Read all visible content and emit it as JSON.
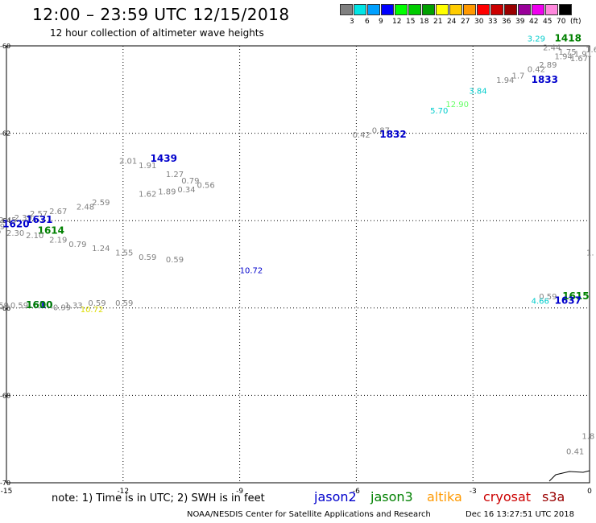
{
  "header": {
    "title": "12:00 – 23:59 UTC 12/15/2018",
    "subtitle": "12 hour collection of altimeter wave heights"
  },
  "legend": {
    "colors": [
      "#808080",
      "#00e5e5",
      "#00a0ff",
      "#0000ff",
      "#00ff00",
      "#00cc00",
      "#00a000",
      "#ffff00",
      "#ffcc00",
      "#ff9900",
      "#ff0000",
      "#cc0000",
      "#990000",
      "#990099",
      "#ee00ee",
      "#ff88dd",
      "#000000"
    ],
    "labels": [
      "3",
      "6",
      "9",
      "12",
      "15",
      "18",
      "21",
      "24",
      "27",
      "30",
      "33",
      "36",
      "39",
      "42",
      "45",
      "70",
      "(ft)"
    ]
  },
  "map": {
    "lon_ticks": [
      "-15",
      "-12",
      "-9",
      "-6",
      "-3",
      "0"
    ],
    "lat_ticks": [
      "-60",
      "-62",
      "-64",
      "-66",
      "-68",
      "-70"
    ],
    "observations": [
      {
        "t": "3.29",
        "c": "#00cccc",
        "lon": -1.6,
        "lat": -59.9
      },
      {
        "t": "1418",
        "c": "#008000",
        "lon": -0.9,
        "lat": -59.9,
        "b": true
      },
      {
        "t": "2.44",
        "c": "#808080",
        "lon": -1.2,
        "lat": -60.1
      },
      {
        "t": "1.75",
        "c": "#808080",
        "lon": -0.8,
        "lat": -60.2
      },
      {
        "t": "1.91",
        "c": "#808080",
        "lon": -0.4,
        "lat": -60.25
      },
      {
        "t": "1.6",
        "c": "#808080",
        "lon": -0.1,
        "lat": -60.15
      },
      {
        "t": "1.94",
        "c": "#808080",
        "lon": -0.9,
        "lat": -60.3
      },
      {
        "t": "1.67",
        "c": "#808080",
        "lon": -0.5,
        "lat": -60.35
      },
      {
        "t": "2.89",
        "c": "#808080",
        "lon": -1.3,
        "lat": -60.5
      },
      {
        "t": "0.42",
        "c": "#808080",
        "lon": -1.6,
        "lat": -60.6
      },
      {
        "t": "1.7",
        "c": "#808080",
        "lon": -2.0,
        "lat": -60.75
      },
      {
        "t": "1.94",
        "c": "#808080",
        "lon": -2.4,
        "lat": -60.85
      },
      {
        "t": "1833",
        "c": "#0000cc",
        "lon": -1.5,
        "lat": -60.85,
        "b": true
      },
      {
        "t": "3.84",
        "c": "#00cccc",
        "lon": -3.1,
        "lat": -61.1
      },
      {
        "t": "12.90",
        "c": "#66ff66",
        "lon": -3.7,
        "lat": -61.4
      },
      {
        "t": "5.70",
        "c": "#00cccc",
        "lon": -4.1,
        "lat": -61.55
      },
      {
        "t": "0.87",
        "c": "#808080",
        "lon": -5.6,
        "lat": -62.0
      },
      {
        "t": "0.42",
        "c": "#808080",
        "lon": -6.1,
        "lat": -62.1
      },
      {
        "t": "1832",
        "c": "#0000cc",
        "lon": -5.4,
        "lat": -62.1,
        "b": true
      },
      {
        "t": "2.01",
        "c": "#808080",
        "lon": -12.1,
        "lat": -62.7
      },
      {
        "t": "1439",
        "c": "#0000cc",
        "lon": -11.3,
        "lat": -62.65,
        "b": true
      },
      {
        "t": "1.91",
        "c": "#808080",
        "lon": -11.6,
        "lat": -62.8
      },
      {
        "t": "1.27",
        "c": "#808080",
        "lon": -10.9,
        "lat": -63.0
      },
      {
        "t": "0.79",
        "c": "#808080",
        "lon": -10.5,
        "lat": -63.15
      },
      {
        "t": "0.56",
        "c": "#808080",
        "lon": -10.1,
        "lat": -63.25
      },
      {
        "t": "0.34",
        "c": "#808080",
        "lon": -10.6,
        "lat": -63.35
      },
      {
        "t": "1.89",
        "c": "#808080",
        "lon": -11.1,
        "lat": -63.4
      },
      {
        "t": "1.62",
        "c": "#808080",
        "lon": -11.6,
        "lat": -63.45
      },
      {
        "t": "2.59",
        "c": "#808080",
        "lon": -12.8,
        "lat": -63.65
      },
      {
        "t": "2.48",
        "c": "#808080",
        "lon": -13.2,
        "lat": -63.75
      },
      {
        "t": "2.67",
        "c": "#808080",
        "lon": -13.9,
        "lat": -63.85
      },
      {
        "t": "2.57",
        "c": "#808080",
        "lon": -14.4,
        "lat": -63.9
      },
      {
        "t": "2.39",
        "c": "#808080",
        "lon": -14.8,
        "lat": -64.0
      },
      {
        "t": "2.45",
        "c": "#808080",
        "lon": -15.2,
        "lat": -64.05
      },
      {
        "t": "1631",
        "c": "#0000cc",
        "lon": -14.5,
        "lat": -64.05,
        "b": true
      },
      {
        "t": "2.95",
        "c": "#00cccc",
        "lon": -15.8,
        "lat": -64.15
      },
      {
        "t": "2.19",
        "c": "#808080",
        "lon": -15.5,
        "lat": -64.2
      },
      {
        "t": "1620",
        "c": "#0000cc",
        "lon": -15.1,
        "lat": -64.15,
        "b": true
      },
      {
        "t": "2.26",
        "c": "#808080",
        "lon": -15.6,
        "lat": -64.3
      },
      {
        "t": "1614",
        "c": "#008000",
        "lon": -14.2,
        "lat": -64.3,
        "b": true
      },
      {
        "t": "2.30",
        "c": "#808080",
        "lon": -15.0,
        "lat": -64.35
      },
      {
        "t": "2.10",
        "c": "#808080",
        "lon": -14.5,
        "lat": -64.4
      },
      {
        "t": "2.19",
        "c": "#808080",
        "lon": -13.9,
        "lat": -64.5
      },
      {
        "t": "0.79",
        "c": "#808080",
        "lon": -13.4,
        "lat": -64.6
      },
      {
        "t": "1.24",
        "c": "#808080",
        "lon": -12.8,
        "lat": -64.7
      },
      {
        "t": "1.55",
        "c": "#808080",
        "lon": -12.2,
        "lat": -64.8
      },
      {
        "t": "0.59",
        "c": "#808080",
        "lon": -11.6,
        "lat": -64.9
      },
      {
        "t": "0.59",
        "c": "#808080",
        "lon": -10.9,
        "lat": -64.95
      },
      {
        "t": "10.72",
        "c": "#0000cc",
        "lon": -9.0,
        "lat": -65.2
      },
      {
        "t": "0.59",
        "c": "#808080",
        "lon": -12.2,
        "lat": -65.95
      },
      {
        "t": "0.59",
        "c": "#808080",
        "lon": -12.9,
        "lat": -65.95
      },
      {
        "t": "1.33",
        "c": "#808080",
        "lon": -13.5,
        "lat": -66.0
      },
      {
        "t": "0.59",
        "c": "#808080",
        "lon": -15.4,
        "lat": -66.0
      },
      {
        "t": "0.59",
        "c": "#808080",
        "lon": -14.9,
        "lat": -66.0
      },
      {
        "t": "1610",
        "c": "#0000cc",
        "lon": -14.5,
        "lat": -66.0,
        "b": true
      },
      {
        "t": "1600",
        "c": "#008000",
        "lon": -14.5,
        "lat": -66.0,
        "b": true
      },
      {
        "t": "0.99",
        "c": "#808080",
        "lon": -13.8,
        "lat": -66.05
      },
      {
        "t": "10.72",
        "c": "#dddd00",
        "lon": -13.1,
        "lat": -66.1
      },
      {
        "t": "0.59",
        "c": "#808080",
        "lon": -1.3,
        "lat": -65.8
      },
      {
        "t": "1615",
        "c": "#008000",
        "lon": -0.7,
        "lat": -65.8,
        "b": true
      },
      {
        "t": "4.66",
        "c": "#00cccc",
        "lon": -1.5,
        "lat": -65.9
      },
      {
        "t": "1637",
        "c": "#0000cc",
        "lon": -0.9,
        "lat": -65.9,
        "b": true
      },
      {
        "t": "1.",
        "c": "#808080",
        "lon": 0.0,
        "lat": -64.8
      },
      {
        "t": "1.8",
        "c": "#808080",
        "lon": -0.2,
        "lat": -69.0
      },
      {
        "t": "0.41",
        "c": "#808080",
        "lon": -0.6,
        "lat": -69.35
      }
    ]
  },
  "note": "note: 1) Time is in UTC; 2) SWH is in feet",
  "satellites": [
    {
      "name": "jason2",
      "color": "#0000cc"
    },
    {
      "name": "jason3",
      "color": "#008000"
    },
    {
      "name": "altika",
      "color": "#ff9900"
    },
    {
      "name": "cryosat",
      "color": "#cc0000"
    },
    {
      "name": "s3a",
      "color": "#990000"
    }
  ],
  "footer": {
    "credit": "NOAA/NESDIS Center for Satellite Applications and Research",
    "timestamp": "Dec 16 13:27:51 UTC 2018"
  }
}
